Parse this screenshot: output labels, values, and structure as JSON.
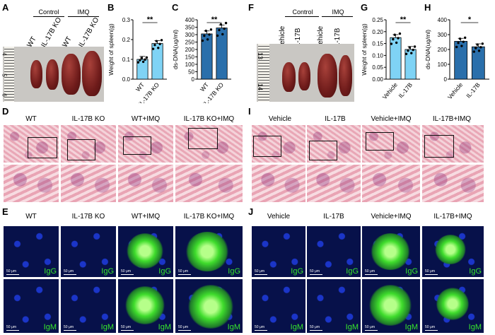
{
  "panels": {
    "A": {
      "label": "A",
      "group_control": "Control",
      "group_imq": "IMQ",
      "cols": [
        "WT",
        "IL-17B KO",
        "WT",
        "IL-17B KO"
      ]
    },
    "B": {
      "label": "B"
    },
    "C": {
      "label": "C"
    },
    "D": {
      "label": "D",
      "headers": [
        "WT",
        "IL-17B KO",
        "WT+IMQ",
        "IL-17B KO+IMQ"
      ]
    },
    "E": {
      "label": "E",
      "headers": [
        "WT",
        "IL-17B KO",
        "WT+IMQ",
        "IL-17B KO+IMQ"
      ],
      "row1": "IgG",
      "row2": "IgM",
      "scale": "50 μm"
    },
    "F": {
      "label": "F",
      "group_control": "Control",
      "group_imq": "IMQ",
      "cols": [
        "Vehicle",
        "IL-17B",
        "Vehicle",
        "IL-17B"
      ]
    },
    "G": {
      "label": "G"
    },
    "H": {
      "label": "H"
    },
    "I": {
      "label": "I",
      "headers": [
        "Vehicle",
        "IL-17B",
        "Vehicle+IMQ",
        "IL-17B+IMQ"
      ]
    },
    "J": {
      "label": "J",
      "headers": [
        "Vehicle",
        "IL-17B",
        "Vehicle+IMQ",
        "IL-17B+IMQ"
      ],
      "row1": "IgG",
      "row2": "IgM",
      "scale": "50 μm"
    }
  },
  "ruler_labels_A": [
    "4",
    "5",
    "6"
  ],
  "ruler_labels_F": [
    "13",
    "14"
  ],
  "chart_data": [
    {
      "panel": "B",
      "type": "bar",
      "categories": [
        "WT",
        "IL-17B KO"
      ],
      "values": [
        0.1,
        0.18
      ],
      "ylabel": "Weight of spleen(g)",
      "yticks": [
        "0.0",
        "0.1",
        "0.2",
        "0.3"
      ],
      "ylim": [
        0,
        0.3
      ],
      "sig": "**",
      "color": "#7fd3f5"
    },
    {
      "panel": "C",
      "type": "bar",
      "categories": [
        "WT",
        "IL-17B KO"
      ],
      "values": [
        305,
        345
      ],
      "ylabel": "ds-DNA(ug/ml)",
      "yticks": [
        "0",
        "50",
        "100",
        "150",
        "200",
        "250",
        "300",
        "350",
        "400"
      ],
      "ylim": [
        0,
        400
      ],
      "sig": "**",
      "color": "#2a6fab"
    },
    {
      "panel": "G",
      "type": "bar",
      "categories": [
        "Vehicle",
        "IL-17B"
      ],
      "values": [
        0.175,
        0.125
      ],
      "ylabel": "Weight of spleen(g)",
      "yticks": [
        "0.00",
        "0.05",
        "0.10",
        "0.15",
        "0.20",
        "0.25"
      ],
      "ylim": [
        0,
        0.25
      ],
      "sig": "**",
      "color": "#7fd3f5"
    },
    {
      "panel": "H",
      "type": "bar",
      "categories": [
        "Vehicle",
        "IL-17B"
      ],
      "values": [
        255,
        218
      ],
      "ylabel": "ds-DNA(ug/ml)",
      "yticks": [
        "0",
        "100",
        "200",
        "300",
        "400"
      ],
      "ylim": [
        0,
        400
      ],
      "sig": "*",
      "color": "#2a6fab"
    }
  ]
}
